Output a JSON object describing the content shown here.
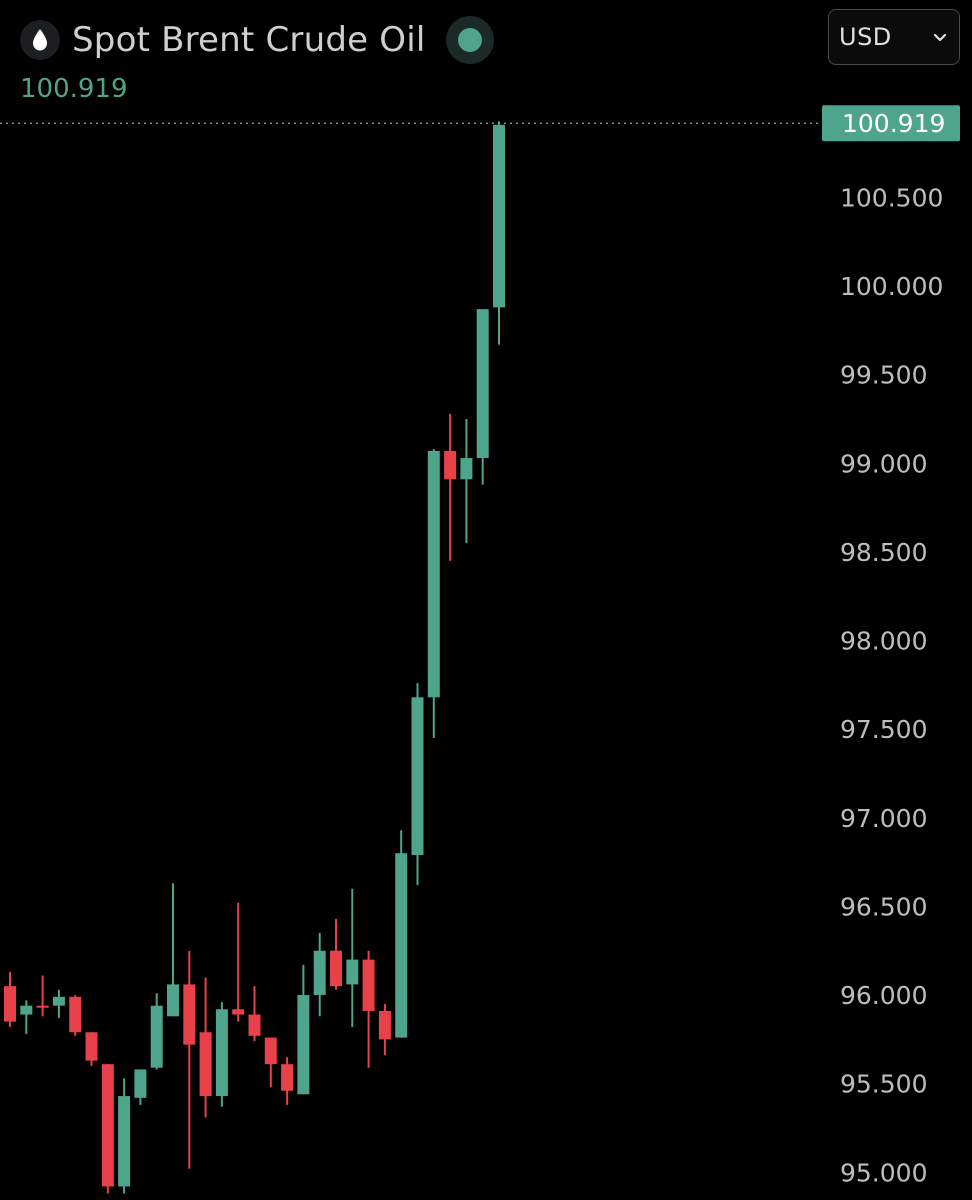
{
  "header": {
    "title": "Spot Brent Crude Oil",
    "logo_icon": "oil-drop-icon",
    "status_icon": "live-status-dot-icon"
  },
  "currency_select": {
    "value": "USD",
    "icon": "chevron-down-icon"
  },
  "last_price": {
    "value": "100.919",
    "color": "#4ea58b"
  },
  "colors": {
    "up": "#4ea58b",
    "down": "#e8414a",
    "background": "#000000",
    "axis_text": "#bdbdbd"
  },
  "chart_data": {
    "type": "candlestick",
    "y_axis_position": "right",
    "ylim": [
      94.9,
      101.05
    ],
    "y_ticks": [
      "95.000",
      "95.500",
      "96.000",
      "96.500",
      "97.000",
      "97.500",
      "98.000",
      "98.500",
      "99.000",
      "99.500",
      "100.000",
      "100.500"
    ],
    "grid": false,
    "last_price_line": 100.919,
    "candles": [
      {
        "o": 96.05,
        "h": 96.13,
        "l": 95.82,
        "c": 95.85
      },
      {
        "o": 95.89,
        "h": 95.97,
        "l": 95.78,
        "c": 95.94
      },
      {
        "o": 95.94,
        "h": 96.11,
        "l": 95.88,
        "c": 95.93
      },
      {
        "o": 95.94,
        "h": 96.03,
        "l": 95.87,
        "c": 95.99
      },
      {
        "o": 95.99,
        "h": 96.0,
        "l": 95.77,
        "c": 95.79
      },
      {
        "o": 95.79,
        "h": 95.79,
        "l": 95.6,
        "c": 95.63
      },
      {
        "o": 95.61,
        "h": 95.61,
        "l": 94.88,
        "c": 94.92
      },
      {
        "o": 94.92,
        "h": 95.53,
        "l": 94.88,
        "c": 95.43
      },
      {
        "o": 95.42,
        "h": 95.58,
        "l": 95.38,
        "c": 95.58
      },
      {
        "o": 95.59,
        "h": 96.01,
        "l": 95.58,
        "c": 95.94
      },
      {
        "o": 95.88,
        "h": 96.63,
        "l": 95.88,
        "c": 96.06
      },
      {
        "o": 96.06,
        "h": 96.25,
        "l": 95.02,
        "c": 95.72
      },
      {
        "o": 95.79,
        "h": 96.1,
        "l": 95.31,
        "c": 95.43
      },
      {
        "o": 95.43,
        "h": 95.96,
        "l": 95.37,
        "c": 95.92
      },
      {
        "o": 95.92,
        "h": 96.52,
        "l": 95.85,
        "c": 95.89
      },
      {
        "o": 95.89,
        "h": 96.05,
        "l": 95.74,
        "c": 95.77
      },
      {
        "o": 95.76,
        "h": 95.76,
        "l": 95.48,
        "c": 95.61
      },
      {
        "o": 95.61,
        "h": 95.65,
        "l": 95.38,
        "c": 95.46
      },
      {
        "o": 95.44,
        "h": 96.17,
        "l": 95.44,
        "c": 96.0
      },
      {
        "o": 96.0,
        "h": 96.35,
        "l": 95.88,
        "c": 96.25
      },
      {
        "o": 96.25,
        "h": 96.43,
        "l": 96.03,
        "c": 96.05
      },
      {
        "o": 96.06,
        "h": 96.6,
        "l": 95.82,
        "c": 96.2
      },
      {
        "o": 96.2,
        "h": 96.25,
        "l": 95.59,
        "c": 95.91
      },
      {
        "o": 95.91,
        "h": 95.95,
        "l": 95.66,
        "c": 95.75
      },
      {
        "o": 95.76,
        "h": 96.93,
        "l": 95.76,
        "c": 96.8
      },
      {
        "o": 96.79,
        "h": 97.76,
        "l": 96.62,
        "c": 97.68
      },
      {
        "o": 97.68,
        "h": 99.08,
        "l": 97.45,
        "c": 99.07
      },
      {
        "o": 99.07,
        "h": 99.28,
        "l": 98.45,
        "c": 98.91
      },
      {
        "o": 98.91,
        "h": 99.25,
        "l": 98.55,
        "c": 99.03
      },
      {
        "o": 99.03,
        "h": 99.87,
        "l": 98.88,
        "c": 99.87
      },
      {
        "o": 99.88,
        "h": 100.93,
        "l": 99.67,
        "c": 100.91
      }
    ]
  }
}
